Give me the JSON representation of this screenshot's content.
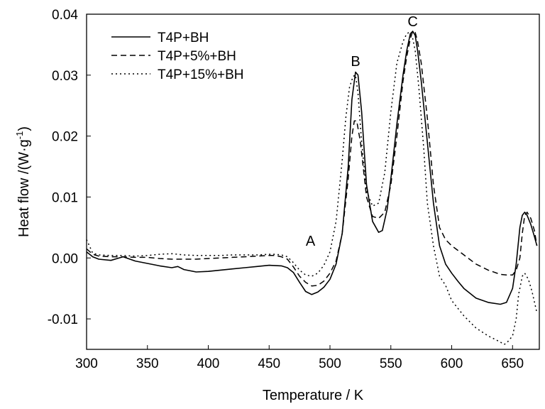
{
  "chart_data": {
    "type": "line",
    "title": "",
    "xlabel": "Temperature / K",
    "ylabel": "Heat flow /(W·g",
    "ylabel_sup": "-1",
    "ylabel_close": ")",
    "xlim": [
      300,
      672
    ],
    "ylim": [
      -0.015,
      0.04
    ],
    "x_ticks": [
      300,
      350,
      400,
      450,
      500,
      550,
      600,
      650
    ],
    "x_tick_labels": [
      "300",
      "350",
      "400",
      "450",
      "500",
      "550",
      "600",
      "650"
    ],
    "y_ticks": [
      -0.01,
      0.0,
      0.01,
      0.02,
      0.03,
      0.04
    ],
    "y_tick_labels": [
      "-0.01",
      "0.00",
      "0.01",
      "0.02",
      "0.03",
      "0.04"
    ],
    "grid": false,
    "legend_position": "top-left",
    "annotations": [
      {
        "text": "A",
        "x": 484,
        "y": 0.002
      },
      {
        "text": "B",
        "x": 521,
        "y": 0.0315
      },
      {
        "text": "C",
        "x": 568,
        "y": 0.038
      }
    ],
    "series": [
      {
        "name": "T4P+BH",
        "style": "solid",
        "x": [
          300,
          305,
          310,
          320,
          330,
          340,
          350,
          360,
          370,
          375,
          380,
          390,
          400,
          410,
          420,
          430,
          440,
          450,
          460,
          465,
          470,
          475,
          480,
          485,
          490,
          495,
          500,
          505,
          510,
          515,
          518,
          521,
          523,
          526,
          530,
          535,
          540,
          543,
          547,
          550,
          555,
          560,
          563,
          566,
          568,
          570,
          572,
          575,
          580,
          585,
          590,
          595,
          600,
          605,
          610,
          620,
          630,
          640,
          645,
          650,
          653,
          656,
          658,
          660,
          662,
          665,
          668,
          670
        ],
        "y": [
          0.001,
          0.0002,
          -0.0002,
          -0.0004,
          0.0002,
          -0.0005,
          -0.0009,
          -0.0013,
          -0.0016,
          -0.0014,
          -0.0019,
          -0.0023,
          -0.0022,
          -0.002,
          -0.0018,
          -0.0016,
          -0.0014,
          -0.0012,
          -0.0013,
          -0.0016,
          -0.0024,
          -0.004,
          -0.0055,
          -0.006,
          -0.0056,
          -0.0048,
          -0.0035,
          -0.001,
          0.004,
          0.015,
          0.026,
          0.0305,
          0.03,
          0.024,
          0.012,
          0.006,
          0.0042,
          0.0045,
          0.008,
          0.013,
          0.022,
          0.03,
          0.034,
          0.0368,
          0.0372,
          0.0365,
          0.034,
          0.029,
          0.019,
          0.009,
          0.002,
          -0.001,
          -0.0025,
          -0.0038,
          -0.005,
          -0.0066,
          -0.0073,
          -0.0076,
          -0.0073,
          -0.005,
          -0.001,
          0.005,
          0.007,
          0.0075,
          0.007,
          0.0055,
          0.0035,
          0.002
        ]
      },
      {
        "name": "T4P+5%+BH",
        "style": "dashed",
        "x": [
          300,
          305,
          310,
          320,
          330,
          340,
          350,
          360,
          370,
          380,
          390,
          400,
          410,
          420,
          430,
          440,
          450,
          455,
          460,
          465,
          470,
          475,
          480,
          485,
          490,
          495,
          500,
          505,
          510,
          515,
          518,
          520,
          522,
          525,
          530,
          535,
          540,
          545,
          550,
          555,
          560,
          563,
          566,
          568,
          570,
          572,
          575,
          580,
          585,
          590,
          595,
          600,
          610,
          620,
          630,
          640,
          645,
          650,
          653,
          656,
          658,
          660,
          662,
          665,
          668,
          670
        ],
        "y": [
          0.0015,
          0.0006,
          0.0003,
          0.0002,
          0.0002,
          0.0001,
          0.0001,
          -0.0001,
          -0.0002,
          -0.0002,
          -0.0002,
          -0.0001,
          0.0,
          0.0001,
          0.0002,
          0.0003,
          0.0004,
          0.0004,
          0.0002,
          -0.0002,
          -0.0015,
          -0.003,
          -0.004,
          -0.0046,
          -0.0045,
          -0.0038,
          -0.0025,
          -0.0005,
          0.004,
          0.013,
          0.02,
          0.0225,
          0.0225,
          0.019,
          0.01,
          0.0068,
          0.0065,
          0.0075,
          0.012,
          0.02,
          0.029,
          0.033,
          0.036,
          0.0372,
          0.037,
          0.0355,
          0.032,
          0.023,
          0.012,
          0.005,
          0.003,
          0.002,
          0.0005,
          -0.001,
          -0.002,
          -0.0027,
          -0.0028,
          -0.0028,
          -0.002,
          0.0,
          0.004,
          0.007,
          0.0075,
          0.0065,
          0.0045,
          0.002
        ]
      },
      {
        "name": "T4P+15%+BH",
        "style": "dotted",
        "x": [
          300,
          305,
          310,
          320,
          330,
          340,
          350,
          360,
          370,
          380,
          390,
          400,
          410,
          420,
          430,
          440,
          450,
          455,
          460,
          465,
          470,
          475,
          480,
          485,
          490,
          495,
          500,
          505,
          510,
          513,
          516,
          519,
          521,
          523,
          526,
          530,
          535,
          540,
          545,
          550,
          555,
          560,
          563,
          565,
          568,
          570,
          573,
          577,
          580,
          585,
          590,
          595,
          600,
          610,
          620,
          630,
          640,
          643,
          645,
          650,
          653,
          655,
          658,
          660,
          663,
          666,
          670
        ],
        "y": [
          0.003,
          0.0008,
          0.0005,
          0.0004,
          0.0004,
          0.0003,
          0.0004,
          0.0006,
          0.0007,
          0.0005,
          0.0004,
          0.0004,
          0.0004,
          0.0005,
          0.0005,
          0.0005,
          0.0006,
          0.0006,
          0.0005,
          0.0002,
          -0.0008,
          -0.002,
          -0.0028,
          -0.003,
          -0.0025,
          -0.0012,
          0.001,
          0.006,
          0.016,
          0.023,
          0.028,
          0.0298,
          0.03,
          0.027,
          0.019,
          0.011,
          0.0085,
          0.009,
          0.014,
          0.024,
          0.032,
          0.0355,
          0.0368,
          0.037,
          0.036,
          0.034,
          0.028,
          0.018,
          0.009,
          0.002,
          -0.003,
          -0.0045,
          -0.007,
          -0.0095,
          -0.0115,
          -0.0128,
          -0.0138,
          -0.0142,
          -0.014,
          -0.0128,
          -0.01,
          -0.006,
          -0.003,
          -0.0025,
          -0.0035,
          -0.0055,
          -0.009
        ]
      }
    ]
  }
}
